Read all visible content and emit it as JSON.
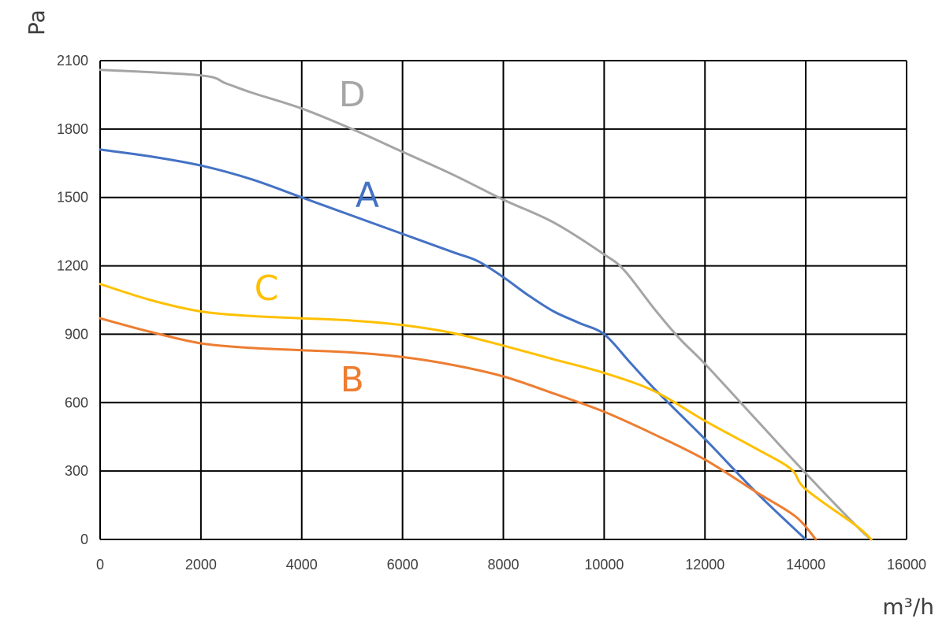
{
  "chart_data": {
    "type": "line",
    "xlabel": "m³/h",
    "ylabel": "Pa",
    "xlim": [
      0,
      16000
    ],
    "ylim": [
      0,
      2100
    ],
    "xticks": [
      0,
      2000,
      4000,
      6000,
      8000,
      10000,
      12000,
      14000,
      16000
    ],
    "yticks": [
      0,
      300,
      600,
      900,
      1200,
      1500,
      1800,
      2100
    ],
    "grid": true,
    "series": [
      {
        "name": "D",
        "color": "#a5a5a5",
        "label_at": [
          5000,
          1900
        ],
        "points": [
          [
            0,
            2060
          ],
          [
            2000,
            2035
          ],
          [
            2500,
            2000
          ],
          [
            3000,
            1960
          ],
          [
            4000,
            1890
          ],
          [
            5000,
            1800
          ],
          [
            6000,
            1700
          ],
          [
            7000,
            1600
          ],
          [
            8000,
            1490
          ],
          [
            9000,
            1390
          ],
          [
            10000,
            1250
          ],
          [
            10400,
            1180
          ],
          [
            11000,
            1010
          ],
          [
            11500,
            880
          ],
          [
            12000,
            770
          ],
          [
            13000,
            530
          ],
          [
            14000,
            290
          ],
          [
            15000,
            60
          ],
          [
            15300,
            0
          ]
        ]
      },
      {
        "name": "A",
        "color": "#4472c4",
        "label_at": [
          5300,
          1460
        ],
        "points": [
          [
            0,
            1710
          ],
          [
            1000,
            1680
          ],
          [
            2000,
            1640
          ],
          [
            3000,
            1580
          ],
          [
            4000,
            1500
          ],
          [
            5000,
            1420
          ],
          [
            6000,
            1340
          ],
          [
            7000,
            1260
          ],
          [
            7500,
            1220
          ],
          [
            8000,
            1150
          ],
          [
            8500,
            1070
          ],
          [
            9000,
            1000
          ],
          [
            9500,
            950
          ],
          [
            10000,
            900
          ],
          [
            10500,
            780
          ],
          [
            11000,
            660
          ],
          [
            12000,
            440
          ],
          [
            13000,
            210
          ],
          [
            14000,
            0
          ]
        ]
      },
      {
        "name": "C",
        "color": "#ffc000",
        "label_at": [
          3300,
          1050
        ],
        "points": [
          [
            0,
            1120
          ],
          [
            1000,
            1050
          ],
          [
            2000,
            1000
          ],
          [
            3000,
            980
          ],
          [
            4000,
            970
          ],
          [
            5000,
            960
          ],
          [
            6000,
            940
          ],
          [
            7000,
            905
          ],
          [
            8000,
            850
          ],
          [
            9000,
            790
          ],
          [
            10000,
            730
          ],
          [
            11000,
            650
          ],
          [
            12000,
            520
          ],
          [
            13000,
            400
          ],
          [
            13700,
            310
          ],
          [
            14000,
            220
          ],
          [
            15000,
            60
          ],
          [
            15300,
            0
          ]
        ]
      },
      {
        "name": "B",
        "color": "#ed7d31",
        "label_at": [
          5000,
          650
        ],
        "points": [
          [
            0,
            970
          ],
          [
            1000,
            910
          ],
          [
            2000,
            860
          ],
          [
            3000,
            840
          ],
          [
            4000,
            830
          ],
          [
            5000,
            820
          ],
          [
            6000,
            800
          ],
          [
            7000,
            765
          ],
          [
            8000,
            715
          ],
          [
            9000,
            640
          ],
          [
            10000,
            560
          ],
          [
            11000,
            460
          ],
          [
            12000,
            350
          ],
          [
            13000,
            210
          ],
          [
            13800,
            100
          ],
          [
            14200,
            0
          ]
        ]
      }
    ]
  }
}
